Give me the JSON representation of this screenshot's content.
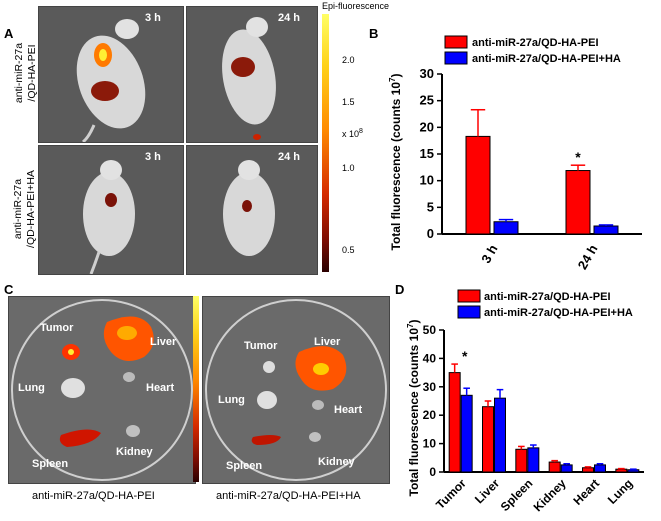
{
  "panel_letters": {
    "a": "A",
    "b": "B",
    "c": "C",
    "d": "D"
  },
  "panel_a": {
    "colorbar_title": "Epi-fluorescence",
    "colorbar_unit": "x 10",
    "colorbar_unit_exp": "8",
    "colorbar_ticks": [
      "2.0",
      "1.5",
      "1.0",
      "0.5"
    ],
    "row_labels": [
      {
        "line1": "anti-miR-27a",
        "line2": "/QD-HA-PEI"
      },
      {
        "line1": "anti-miR-27a",
        "line2": "/QD-HA-PEI+HA"
      }
    ],
    "time_labels": [
      "3 h",
      "24 h",
      "3 h",
      "24 h"
    ]
  },
  "panel_c": {
    "left_organs": [
      "Tumor",
      "Liver",
      "Lung",
      "Heart",
      "Spleen",
      "Kidney"
    ],
    "right_organs": [
      "Tumor",
      "Liver",
      "Lung",
      "Heart",
      "Spleen",
      "Kidney"
    ],
    "captions": [
      "anti-miR-27a/QD-HA-PEI",
      "anti-miR-27a/QD-HA-PEI+HA"
    ]
  },
  "chart_data": [
    {
      "id": "B",
      "type": "bar",
      "categories": [
        "3 h",
        "24 h"
      ],
      "series": [
        {
          "name": "anti-miR-27a/QD-HA-PEI",
          "color": "#ff0000",
          "values": [
            18.3,
            11.9
          ],
          "errors": [
            5.0,
            1.0
          ]
        },
        {
          "name": "anti-miR-27a/QD-HA-PEI+HA",
          "color": "#0000ff",
          "values": [
            2.3,
            1.5
          ],
          "errors": [
            0.4,
            0.2
          ]
        }
      ],
      "ylabel_main": "Total fluorescence (counts 10",
      "ylabel_exp": "7",
      "ylabel_close": ")",
      "ylim": [
        0,
        30
      ],
      "yticks": [
        0,
        5,
        10,
        15,
        20,
        25,
        30
      ],
      "significance": [
        "",
        "*"
      ],
      "legend_position": "top"
    },
    {
      "id": "D",
      "type": "bar",
      "categories": [
        "Tumor",
        "Liver",
        "Spleen",
        "Kidney",
        "Heart",
        "Lung"
      ],
      "series": [
        {
          "name": "anti-miR-27a/QD-HA-PEI",
          "color": "#ff0000",
          "values": [
            35,
            23,
            8,
            3.5,
            1.5,
            1
          ],
          "errors": [
            3,
            2,
            1,
            0.5,
            0.3,
            0.2
          ]
        },
        {
          "name": "anti-miR-27a/QD-HA-PEI+HA",
          "color": "#0000ff",
          "values": [
            27,
            26,
            8.5,
            2.5,
            2.5,
            0.8
          ],
          "errors": [
            2.5,
            3,
            1,
            0.4,
            0.4,
            0.2
          ]
        }
      ],
      "ylabel_main": "Total fluorescence (counts 10",
      "ylabel_exp": "7",
      "ylabel_close": ")",
      "ylim": [
        0,
        50
      ],
      "yticks": [
        0,
        10,
        20,
        30,
        40,
        50
      ],
      "significance": [
        "*",
        "",
        "",
        "",
        "",
        ""
      ],
      "legend_position": "top"
    }
  ]
}
